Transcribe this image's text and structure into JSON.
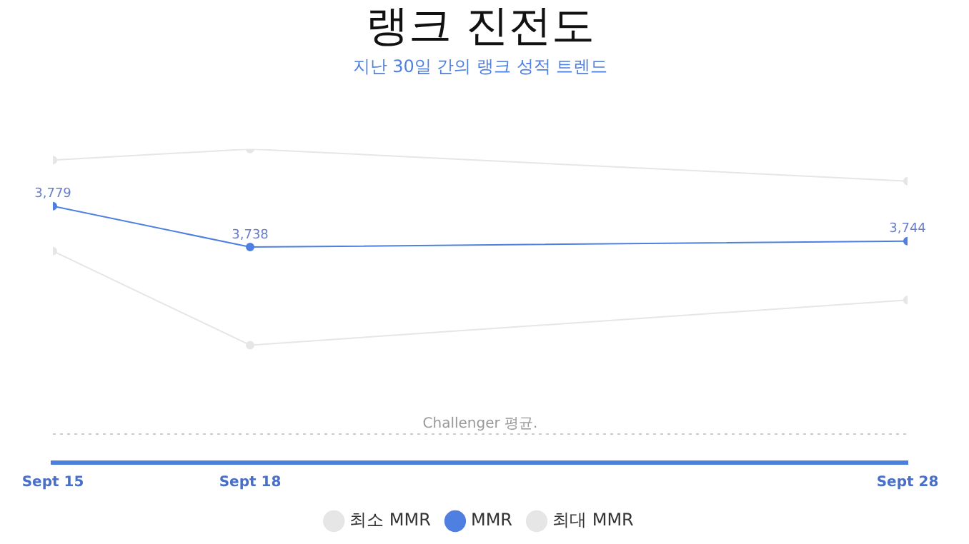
{
  "chart_data": {
    "type": "line",
    "title": "랭크 진전도",
    "subtitle": "지난 30일 간의 랭크 성적 트렌드",
    "x": [
      "--09-15",
      "--09-18",
      "--09-28"
    ],
    "xlim": [
      "--09-15",
      "--09-28"
    ],
    "xticks": [
      {
        "value": "--09-15",
        "label": "Sept 15"
      },
      {
        "value": "--09-18",
        "label": "Sept 18"
      },
      {
        "value": "--09-28",
        "label": "Sept 28"
      }
    ],
    "series": [
      {
        "name": "최소 MMR",
        "color": "#e6e6e6",
        "values": [
          3734,
          3640,
          3685
        ]
      },
      {
        "name": "MMR",
        "color": "#4f7fe0",
        "values": [
          3779,
          3738,
          3744
        ],
        "value_labels": [
          "3,779",
          "3,738",
          "3,744"
        ]
      },
      {
        "name": "최대 MMR",
        "color": "#e6e6e6",
        "values": [
          3825,
          3836,
          3804
        ]
      }
    ],
    "ref_lines": [
      {
        "axis": "y",
        "value": 3551,
        "label": "Challenger 평균.",
        "color": "#cccccc",
        "line_style": "dotted"
      }
    ],
    "grid": false,
    "legend": "bottom",
    "tick_labels": "x",
    "marker": "circle",
    "line_style": "solid"
  }
}
